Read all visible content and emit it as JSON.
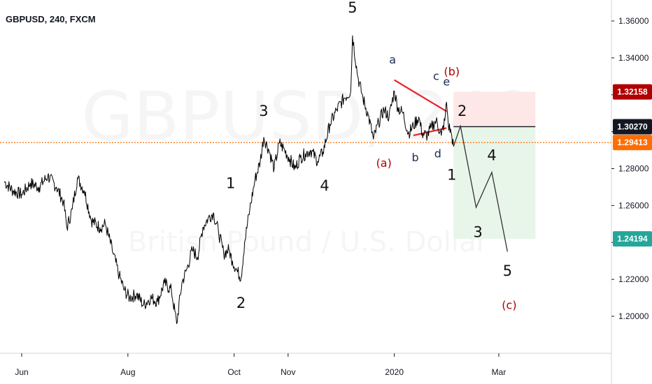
{
  "chart_header": {
    "symbol_title": "GBPUSD, 240, FXCM"
  },
  "colors": {
    "price_line": "#000000",
    "red": "#b00000",
    "triangle_red": "#e8202a",
    "orange": "#ff6d00",
    "navy": "#1c2b57",
    "green_tag": "#26a69a",
    "black_tag": "#131722",
    "target_fill": "#e8f5e9",
    "stop_fill": "#fde7e7"
  },
  "chart_data": {
    "type": "line",
    "title": "GBPUSD, 240, FXCM",
    "watermark": {
      "symbol": "GBPUSD, 240",
      "description": "British Pound / U.S. Dollar"
    },
    "ylim": [
      1.18,
      1.37
    ],
    "y_ticks": [
      "1.36000",
      "1.34000",
      "1.32000",
      "1.30000",
      "1.28000",
      "1.26000",
      "1.24000",
      "1.22000",
      "1.20000"
    ],
    "x_ticks": [
      {
        "label": "Jun",
        "t": 0
      },
      {
        "label": "Aug",
        "t": 61
      },
      {
        "label": "Oct",
        "t": 122
      },
      {
        "label": "Nov",
        "t": 153
      },
      {
        "label": "2020",
        "t": 214
      },
      {
        "label": "Mar",
        "t": 274
      }
    ],
    "x_unit": "days since 2019-06-01",
    "xlim": [
      -10,
      315
    ],
    "price_series": {
      "name": "GBPUSD",
      "points": [
        [
          -10,
          1.273
        ],
        [
          -5,
          1.268
        ],
        [
          0,
          1.266
        ],
        [
          5,
          1.272
        ],
        [
          10,
          1.27
        ],
        [
          15,
          1.276
        ],
        [
          20,
          1.27
        ],
        [
          24,
          1.262
        ],
        [
          26,
          1.248
        ],
        [
          29,
          1.258
        ],
        [
          32,
          1.275
        ],
        [
          36,
          1.268
        ],
        [
          40,
          1.252
        ],
        [
          45,
          1.248
        ],
        [
          48,
          1.25
        ],
        [
          52,
          1.236
        ],
        [
          56,
          1.222
        ],
        [
          59,
          1.214
        ],
        [
          62,
          1.21
        ],
        [
          66,
          1.212
        ],
        [
          70,
          1.206
        ],
        [
          74,
          1.21
        ],
        [
          78,
          1.208
        ],
        [
          82,
          1.218
        ],
        [
          86,
          1.214
        ],
        [
          89,
          1.196
        ],
        [
          92,
          1.218
        ],
        [
          95,
          1.226
        ],
        [
          98,
          1.236
        ],
        [
          101,
          1.232
        ],
        [
          104,
          1.248
        ],
        [
          107,
          1.253
        ],
        [
          110,
          1.256
        ],
        [
          113,
          1.246
        ],
        [
          116,
          1.234
        ],
        [
          119,
          1.236
        ],
        [
          121,
          1.23
        ],
        [
          124,
          1.224
        ],
        [
          126,
          1.221
        ],
        [
          128,
          1.24
        ],
        [
          131,
          1.258
        ],
        [
          134,
          1.274
        ],
        [
          137,
          1.284
        ],
        [
          139,
          1.297
        ],
        [
          142,
          1.29
        ],
        [
          145,
          1.28
        ],
        [
          148,
          1.294
        ],
        [
          151,
          1.29
        ],
        [
          154,
          1.285
        ],
        [
          157,
          1.28
        ],
        [
          160,
          1.286
        ],
        [
          163,
          1.288
        ],
        [
          166,
          1.29
        ],
        [
          170,
          1.284
        ],
        [
          173,
          1.289
        ],
        [
          177,
          1.304
        ],
        [
          181,
          1.312
        ],
        [
          185,
          1.318
        ],
        [
          189,
          1.322
        ],
        [
          190,
          1.352
        ],
        [
          193,
          1.33
        ],
        [
          196,
          1.318
        ],
        [
          199,
          1.309
        ],
        [
          202,
          1.296
        ],
        [
          205,
          1.305
        ],
        [
          208,
          1.312
        ],
        [
          211,
          1.308
        ],
        [
          214,
          1.322
        ],
        [
          216,
          1.313
        ],
        [
          219,
          1.31
        ],
        [
          222,
          1.299
        ],
        [
          225,
          1.303
        ],
        [
          228,
          1.308
        ],
        [
          230,
          1.299
        ],
        [
          233,
          1.298
        ],
        [
          235,
          1.302
        ],
        [
          238,
          1.306
        ],
        [
          241,
          1.298
        ],
        [
          243,
          1.306
        ],
        [
          244,
          1.316
        ],
        [
          245,
          1.304
        ],
        [
          247,
          1.298
        ],
        [
          248,
          1.292
        ]
      ]
    },
    "projection_path": {
      "name": "projection",
      "points": [
        [
          248,
          1.292
        ],
        [
          252,
          1.303
        ],
        [
          261,
          1.259
        ],
        [
          270,
          1.278
        ],
        [
          279,
          1.235
        ]
      ]
    },
    "triangle_lines": [
      {
        "from": [
          214,
          1.328
        ],
        "to": [
          244,
          1.311
        ]
      },
      {
        "from": [
          225,
          1.298
        ],
        "to": [
          244,
          1.302
        ]
      }
    ],
    "levels": [
      {
        "name": "entry",
        "value": 1.3027,
        "label": "1.30270",
        "color": "#131722",
        "t_start": 248,
        "t_end": 295,
        "style": "solid"
      },
      {
        "name": "current",
        "value": 1.29413,
        "label": "1.29413",
        "color": "#ff6d00",
        "style": "dotted"
      },
      {
        "name": "stop",
        "value": 1.32158,
        "label": "1.32158",
        "color": "#b00000"
      },
      {
        "name": "target",
        "value": 1.24194,
        "label": "1.24194",
        "color": "#26a69a"
      }
    ],
    "position_zones": {
      "stop_zone": {
        "t_start": 248,
        "t_end": 295,
        "from": 1.3027,
        "to": 1.32158
      },
      "target_zone": {
        "t_start": 248,
        "t_end": 295,
        "from": 1.24194,
        "to": 1.3027
      }
    },
    "wave_labels": [
      {
        "text": "1",
        "t": 120,
        "y": 1.2695,
        "kind": "major",
        "color": "#111111"
      },
      {
        "text": "2",
        "t": 126,
        "y": 1.2045,
        "kind": "major",
        "color": "#111111"
      },
      {
        "text": "3",
        "t": 139,
        "y": 1.3085,
        "kind": "major",
        "color": "#111111"
      },
      {
        "text": "4",
        "t": 174,
        "y": 1.268,
        "kind": "major",
        "color": "#111111"
      },
      {
        "text": "5",
        "t": 190,
        "y": 1.3645,
        "kind": "major",
        "color": "#111111"
      },
      {
        "text": "a",
        "t": 213,
        "y": 1.337,
        "kind": "minor",
        "color": "#1c2b57"
      },
      {
        "text": "b",
        "t": 226,
        "y": 1.284,
        "kind": "minor",
        "color": "#1c2b57"
      },
      {
        "text": "c",
        "t": 238,
        "y": 1.328,
        "kind": "minor",
        "color": "#1c2b57"
      },
      {
        "text": "d",
        "t": 239,
        "y": 1.286,
        "kind": "minor",
        "color": "#1c2b57"
      },
      {
        "text": "e",
        "t": 244,
        "y": 1.325,
        "kind": "minor",
        "color": "#1c2b57"
      },
      {
        "text": "(a)",
        "t": 208,
        "y": 1.281,
        "kind": "minor",
        "color": "#b00000"
      },
      {
        "text": "(b)",
        "t": 247,
        "y": 1.3305,
        "kind": "minor",
        "color": "#b00000"
      },
      {
        "text": "2",
        "t": 253,
        "y": 1.3085,
        "kind": "major",
        "color": "#111111"
      },
      {
        "text": "1",
        "t": 247,
        "y": 1.274,
        "kind": "major",
        "color": "#111111"
      },
      {
        "text": "4",
        "t": 270,
        "y": 1.2845,
        "kind": "major",
        "color": "#111111"
      },
      {
        "text": "3",
        "t": 262,
        "y": 1.243,
        "kind": "major",
        "color": "#111111"
      },
      {
        "text": "5",
        "t": 279,
        "y": 1.222,
        "kind": "major",
        "color": "#111111"
      },
      {
        "text": "(c)",
        "t": 280,
        "y": 1.204,
        "kind": "minor",
        "color": "#b00000"
      }
    ]
  }
}
